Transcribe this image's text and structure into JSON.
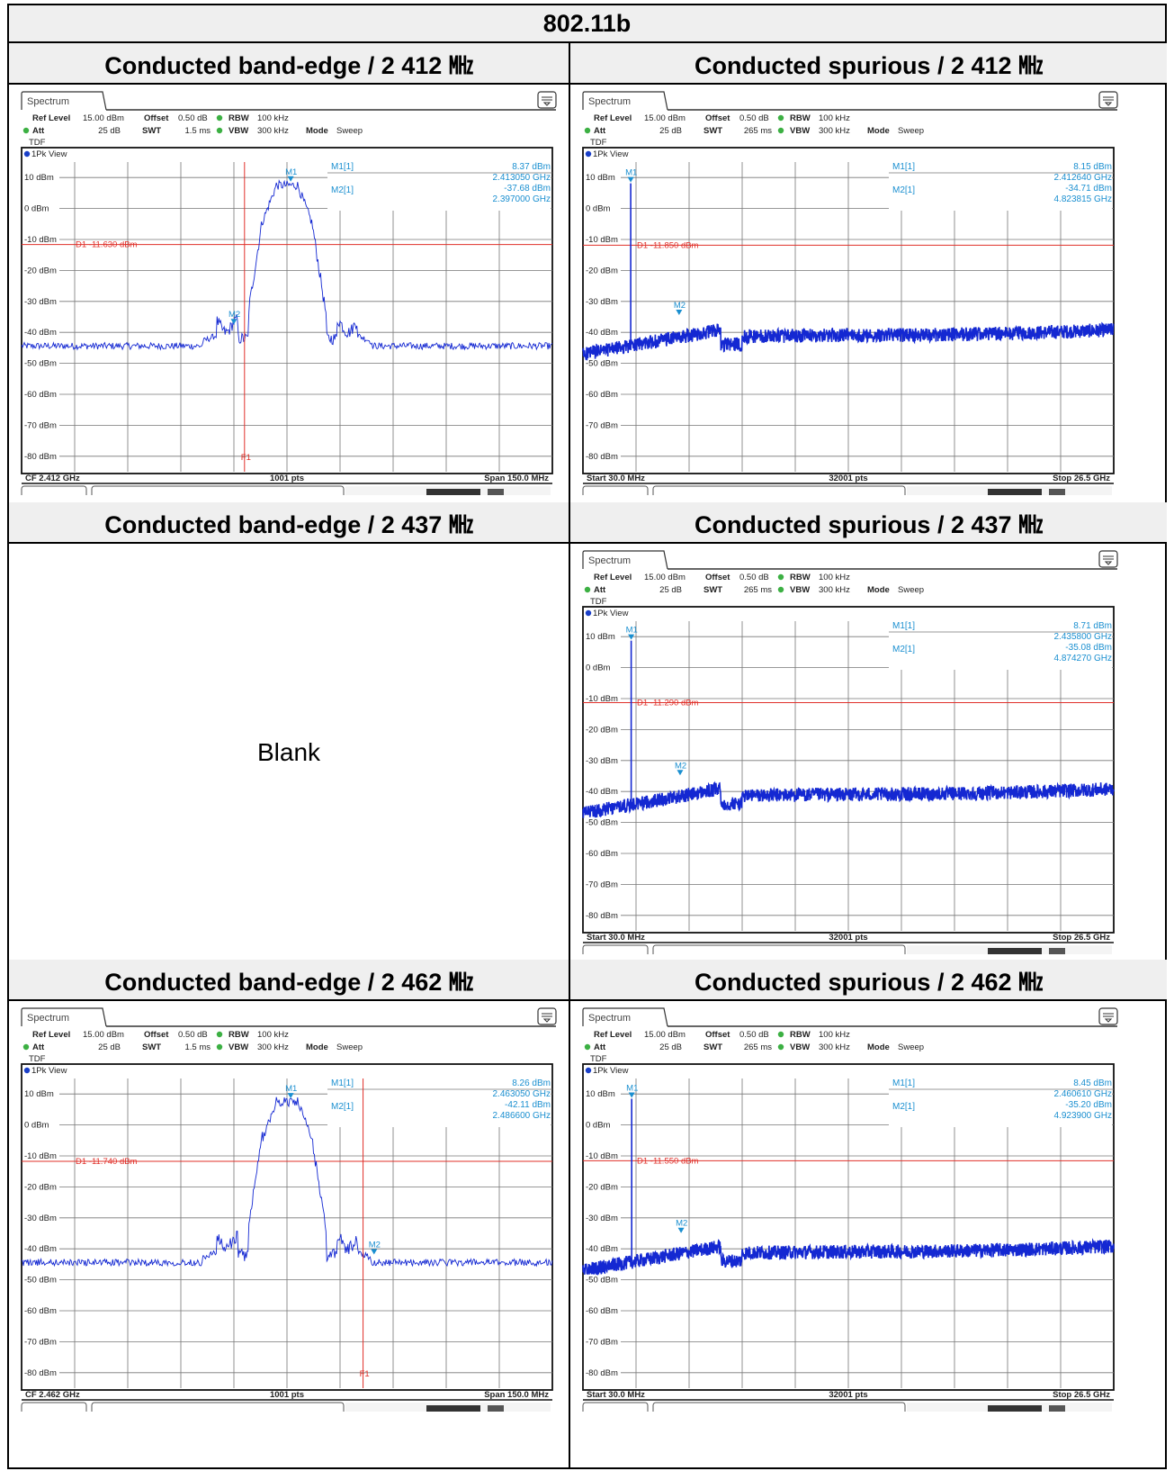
{
  "report_title": "802.11b",
  "blank_label": "Blank",
  "colors": {
    "trace": "#1428d2",
    "limit": "#e0302a",
    "marker": "#1a8fd0",
    "grid": "#000000"
  },
  "cells": [
    {
      "heading": "Conducted band-edge / 2 412 ㎒",
      "type": "bandedge",
      "refLevel": "15.00 dBm",
      "offset": "0.50 dB",
      "rbw": "100 kHz",
      "att": "25 dB",
      "swt": "1.5 ms",
      "vbw": "300 kHz",
      "mode": "Sweep",
      "m1_value": "8.37 dBm",
      "m1_freq": "2.413050 GHz",
      "m2_value": "-37.68 dBm",
      "m2_freq": "2.397000 GHz",
      "d1": "D1  -11.630 dBm",
      "f1": "F1",
      "left_footer": "CF 2.412 GHz",
      "mid_footer": "1001 pts",
      "right_footer": "Span 150.0 MHz"
    },
    {
      "heading": "Conducted spurious / 2 412 ㎒",
      "type": "spurious",
      "refLevel": "15.00 dBm",
      "offset": "0.50 dB",
      "rbw": "100 kHz",
      "att": "25 dB",
      "swt": "265 ms",
      "vbw": "300 kHz",
      "mode": "Sweep",
      "m1_value": "8.15 dBm",
      "m1_freq": "2.412640 GHz",
      "m2_value": "-34.71 dBm",
      "m2_freq": "4.823815 GHz",
      "d1": "D1  -11.850 dBm",
      "left_footer": "Start 30.0 MHz",
      "mid_footer": "32001 pts",
      "right_footer": "Stop 26.5 GHz"
    },
    {
      "heading": "Conducted band-edge / 2 437 ㎒",
      "type": "blank"
    },
    {
      "heading": "Conducted spurious / 2 437 ㎒",
      "type": "spurious",
      "refLevel": "15.00 dBm",
      "offset": "0.50 dB",
      "rbw": "100 kHz",
      "att": "25 dB",
      "swt": "265 ms",
      "vbw": "300 kHz",
      "mode": "Sweep",
      "m1_value": "8.71 dBm",
      "m1_freq": "2.435800 GHz",
      "m2_value": "-35.08 dBm",
      "m2_freq": "4.874270 GHz",
      "d1": "D1  -11.290 dBm",
      "left_footer": "Start 30.0 MHz",
      "mid_footer": "32001 pts",
      "right_footer": "Stop 26.5 GHz"
    },
    {
      "heading": "Conducted band-edge / 2 462 ㎒",
      "type": "bandedge",
      "refLevel": "15.00 dBm",
      "offset": "0.50 dB",
      "rbw": "100 kHz",
      "att": "25 dB",
      "swt": "1.5 ms",
      "vbw": "300 kHz",
      "mode": "Sweep",
      "m1_value": "8.26 dBm",
      "m1_freq": "2.463050 GHz",
      "m2_value": "-42.11 dBm",
      "m2_freq": "2.486600 GHz",
      "d1": "D1  -11.740 dBm",
      "f1": "F1",
      "left_footer": "CF 2.462 GHz",
      "mid_footer": "1001 pts",
      "right_footer": "Span 150.0 MHz"
    },
    {
      "heading": "Conducted spurious / 2 462 ㎒",
      "type": "spurious",
      "refLevel": "15.00 dBm",
      "offset": "0.50 dB",
      "rbw": "100 kHz",
      "att": "25 dB",
      "swt": "265 ms",
      "vbw": "300 kHz",
      "mode": "Sweep",
      "m1_value": "8.45 dBm",
      "m1_freq": "2.460610 GHz",
      "m2_value": "-35.20 dBm",
      "m2_freq": "4.923900 GHz",
      "d1": "D1  -11.550 dBm",
      "left_footer": "Start 30.0 MHz",
      "mid_footer": "32001 pts",
      "right_footer": "Stop 26.5 GHz"
    }
  ],
  "labels": {
    "tab": "Spectrum",
    "view": "1Pk View",
    "ref_level": "Ref Level",
    "offset": "Offset",
    "rbw": "RBW",
    "att": "Att",
    "swt": "SWT",
    "vbw": "VBW",
    "mode": "Mode",
    "tdf": "TDF",
    "m1_label": "M1[1]",
    "m2_label": "M2[1]",
    "m1_tag": "M1",
    "m2_tag": "M2"
  },
  "yticks": [
    "10 dBm",
    "0 dBm",
    "-10 dBm",
    "-20 dBm",
    "-30 dBm",
    "-40 dBm",
    "-50 dBm",
    "-60 dBm",
    "-70 dBm",
    "-80 dBm"
  ],
  "chart_data": [
    {
      "type": "line",
      "title": "Conducted band-edge / 2 412 ㎒",
      "ylim": [
        -85,
        15
      ],
      "x_center_ghz": 2.412,
      "span_mhz": 150.0,
      "points": 1001,
      "limit_dbm": -11.63,
      "markers": [
        {
          "name": "M1",
          "freq_ghz": 2.41305,
          "level_dbm": 8.37
        },
        {
          "name": "M2",
          "freq_ghz": 2.397,
          "level_dbm": -37.68
        }
      ],
      "f1_ghz": 2.4
    },
    {
      "type": "line",
      "title": "Conducted spurious / 2 412 ㎒",
      "ylim": [
        -85,
        15
      ],
      "x_start_ghz": 0.03,
      "x_stop_ghz": 26.5,
      "points": 32001,
      "limit_dbm": -11.85,
      "markers": [
        {
          "name": "M1",
          "freq_ghz": 2.41264,
          "level_dbm": 8.15
        },
        {
          "name": "M2",
          "freq_ghz": 4.823815,
          "level_dbm": -34.71
        }
      ]
    },
    {
      "type": "line",
      "title": "Conducted spurious / 2 437 ㎒",
      "ylim": [
        -85,
        15
      ],
      "x_start_ghz": 0.03,
      "x_stop_ghz": 26.5,
      "points": 32001,
      "limit_dbm": -11.29,
      "markers": [
        {
          "name": "M1",
          "freq_ghz": 2.4358,
          "level_dbm": 8.71
        },
        {
          "name": "M2",
          "freq_ghz": 4.87427,
          "level_dbm": -35.08
        }
      ]
    },
    {
      "type": "line",
      "title": "Conducted band-edge / 2 462 ㎒",
      "ylim": [
        -85,
        15
      ],
      "x_center_ghz": 2.462,
      "span_mhz": 150.0,
      "points": 1001,
      "limit_dbm": -11.74,
      "markers": [
        {
          "name": "M1",
          "freq_ghz": 2.46305,
          "level_dbm": 8.26
        },
        {
          "name": "M2",
          "freq_ghz": 2.4866,
          "level_dbm": -42.11
        }
      ],
      "f1_ghz": 2.4835
    },
    {
      "type": "line",
      "title": "Conducted spurious / 2 462 ㎒",
      "ylim": [
        -85,
        15
      ],
      "x_start_ghz": 0.03,
      "x_stop_ghz": 26.5,
      "points": 32001,
      "limit_dbm": -11.55,
      "markers": [
        {
          "name": "M1",
          "freq_ghz": 2.46061,
          "level_dbm": 8.45
        },
        {
          "name": "M2",
          "freq_ghz": 4.9239,
          "level_dbm": -35.2
        }
      ]
    }
  ]
}
